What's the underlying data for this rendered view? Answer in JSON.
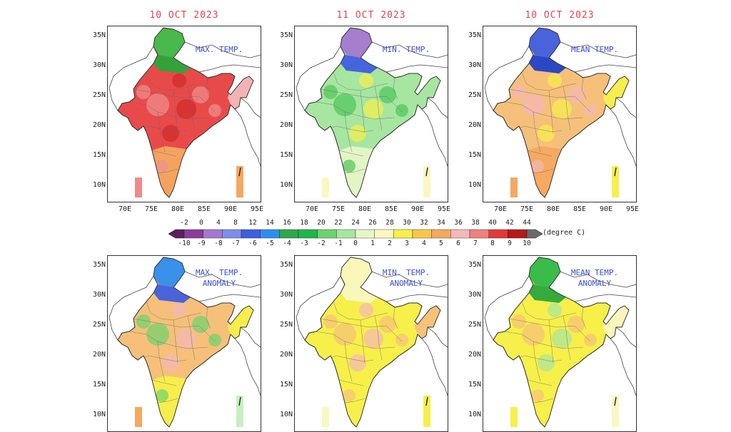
{
  "top_row": [
    {
      "date": "10 OCT 2023",
      "label": [
        "MAX. TEMP."
      ]
    },
    {
      "date": "11 OCT 2023",
      "label": [
        "MIN. TEMP."
      ]
    },
    {
      "date": "10 OCT 2023",
      "label": [
        "MEAN TEMP."
      ]
    }
  ],
  "bottom_row": [
    {
      "label": [
        "MAX. TEMP.",
        "ANOMALY"
      ]
    },
    {
      "label": [
        "MIN. TEMP.",
        "ANOMALY"
      ]
    },
    {
      "label": [
        "MEAN TEMP.",
        "ANOMALY"
      ]
    }
  ],
  "lat_ticks": [
    "35N",
    "30N",
    "25N",
    "20N",
    "15N",
    "10N"
  ],
  "lon_ticks": [
    "70E",
    "75E",
    "80E",
    "85E",
    "90E",
    "95E"
  ],
  "colorbar": {
    "temp_labels": [
      "-2",
      "0",
      "4",
      "8",
      "12",
      "14",
      "16",
      "18",
      "20",
      "22",
      "24",
      "26",
      "28",
      "30",
      "32",
      "34",
      "36",
      "38",
      "40",
      "42",
      "44"
    ],
    "anomaly_labels": [
      "-10",
      "-9",
      "-8",
      "-7",
      "-6",
      "-5",
      "-4",
      "-3",
      "-2",
      "-1",
      "0",
      "1",
      "2",
      "3",
      "4",
      "5",
      "6",
      "7",
      "8",
      "9",
      "10"
    ],
    "unit": "(degree C)",
    "colors": [
      "#5c1f5c",
      "#8a3d9a",
      "#a478d0",
      "#7e8ee8",
      "#3f5ee0",
      "#2e8ef0",
      "#2ea84a",
      "#1fb64a",
      "#6cd46c",
      "#a6e6a0",
      "#e6f6c8",
      "#fbf7c0",
      "#f7ef4a",
      "#f6c84a",
      "#f4a860",
      "#f4b8b8",
      "#ef8080",
      "#e23a3a",
      "#b81818",
      "#7a1a0e"
    ]
  },
  "panels": {
    "top": [
      {
        "base": "#e84a4a",
        "north": "#3fbf4a",
        "northtop": "#2aa63a",
        "east": "#f4b8b8",
        "south": "#f4a860",
        "patch1": "#f09090",
        "patch2": "#d02a2a",
        "legend": "#f08a8a",
        "legend2": "#f4a860"
      },
      {
        "base": "#a6e6a0",
        "north": "#a478d0",
        "northtop": "#3f5ee0",
        "east": "#a6e6a0",
        "south": "#e6f6c8",
        "patch1": "#4ec45a",
        "patch2": "#f7ef4a",
        "legend": "#fbf7c0",
        "legend2": "#fbf7c0"
      },
      {
        "base": "#f6c07a",
        "north": "#3f5ee0",
        "northtop": "#2040c8",
        "east": "#f7ef4a",
        "south": "#f4a860",
        "patch1": "#f4b8b8",
        "patch2": "#f7ef4a",
        "legend": "#f4a860",
        "legend2": "#f7ef4a"
      }
    ],
    "bottom": [
      {
        "base": "#f6c07a",
        "north": "#2e8ef0",
        "northtop": "#3f5ee0",
        "east": "#f7ef4a",
        "south": "#f7ef4a",
        "patch1": "#6cd46c",
        "patch2": "#f4b8b8",
        "legend": "#f4a860",
        "legend2": "#c8efc0"
      },
      {
        "base": "#f7ef4a",
        "north": "#fbf7c0",
        "northtop": "#fbf7c0",
        "east": "#f6c07a",
        "south": "#f7ef4a",
        "patch1": "#f6c07a",
        "patch2": "#f4b8b8",
        "legend": "#fbf7c0",
        "legend2": "#f7ef4a"
      },
      {
        "base": "#f7ef4a",
        "north": "#2fb84a",
        "northtop": "#2aa63a",
        "east": "#fbf7c0",
        "south": "#f7ef4a",
        "patch1": "#f6c07a",
        "patch2": "#a6e6a0",
        "legend": "#f7ef4a",
        "legend2": "#fbf7c0"
      }
    ]
  }
}
